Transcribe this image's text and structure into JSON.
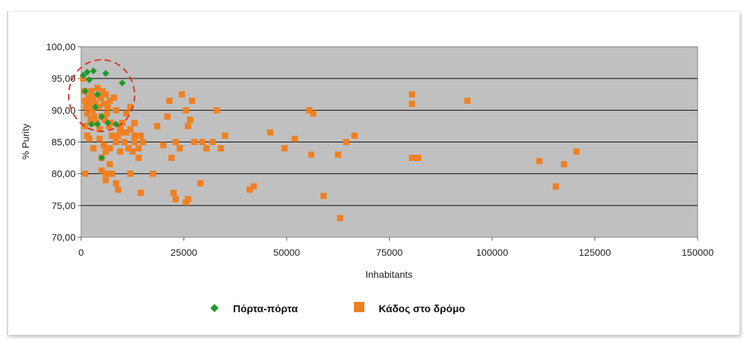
{
  "chart_data": {
    "type": "scatter",
    "xlabel": "Inhabitants",
    "ylabel": "% Purity",
    "xlim": [
      0,
      150000
    ],
    "ylim": [
      70,
      100
    ],
    "x_ticks": [
      0,
      25000,
      50000,
      75000,
      100000,
      125000,
      150000
    ],
    "x_tick_labels": [
      "0",
      "25000",
      "50000",
      "75000",
      "100000",
      "125000",
      "150000"
    ],
    "y_ticks": [
      70,
      75,
      80,
      85,
      90,
      95,
      100
    ],
    "y_tick_labels": [
      "70,00",
      "75,00",
      "80,00",
      "85,00",
      "90,00",
      "95,00",
      "100,00"
    ],
    "grid": "horizontal",
    "legend_position": "bottom",
    "annotation": {
      "type": "dashed-circle",
      "center": [
        5500,
        92
      ],
      "color": "#e03020"
    },
    "series": [
      {
        "name": "Πόρτα-πόρτα",
        "marker": "diamond",
        "color": "#1e9a2e",
        "points": [
          [
            500,
            95.5
          ],
          [
            1500,
            96
          ],
          [
            3000,
            96.2
          ],
          [
            6000,
            95.8
          ],
          [
            10000,
            94.3
          ],
          [
            2000,
            94.8
          ],
          [
            4000,
            92.5
          ],
          [
            3500,
            90.5
          ],
          [
            5000,
            89
          ],
          [
            2500,
            87.8
          ],
          [
            4000,
            87.8
          ],
          [
            6500,
            88
          ],
          [
            8500,
            87.8
          ],
          [
            1000,
            93
          ],
          [
            5000,
            82.5
          ]
        ]
      },
      {
        "name": "Κάδος στο δρόμο",
        "marker": "square",
        "color": "#f08020",
        "points": [
          [
            500,
            95
          ],
          [
            800,
            93
          ],
          [
            1000,
            91.5
          ],
          [
            1200,
            90.5
          ],
          [
            1500,
            89.5
          ],
          [
            1800,
            92
          ],
          [
            2000,
            91
          ],
          [
            2300,
            88.5
          ],
          [
            2500,
            93
          ],
          [
            2800,
            90
          ],
          [
            3000,
            92
          ],
          [
            3200,
            89
          ],
          [
            3500,
            91
          ],
          [
            3800,
            88
          ],
          [
            4000,
            93.5
          ],
          [
            4300,
            90.5
          ],
          [
            4500,
            87
          ],
          [
            4800,
            92
          ],
          [
            5000,
            89
          ],
          [
            5200,
            93
          ],
          [
            5500,
            91
          ],
          [
            5800,
            88.5
          ],
          [
            6000,
            92.5
          ],
          [
            6300,
            89.5
          ],
          [
            6500,
            90.5
          ],
          [
            6800,
            87.5
          ],
          [
            7000,
            91.5
          ],
          [
            7300,
            88
          ],
          [
            8000,
            92
          ],
          [
            8500,
            90
          ],
          [
            9000,
            86
          ],
          [
            9500,
            87
          ],
          [
            10000,
            88
          ],
          [
            11000,
            89.5
          ],
          [
            12000,
            90.5
          ],
          [
            13000,
            86
          ],
          [
            1000,
            87.5
          ],
          [
            1500,
            86
          ],
          [
            2000,
            85.5
          ],
          [
            3000,
            84
          ],
          [
            4500,
            85.5
          ],
          [
            5500,
            84.5
          ],
          [
            6000,
            83.5
          ],
          [
            7000,
            84
          ],
          [
            7500,
            86
          ],
          [
            8500,
            85
          ],
          [
            9500,
            83.5
          ],
          [
            10500,
            85
          ],
          [
            11500,
            84
          ],
          [
            12500,
            83.5
          ],
          [
            13000,
            85
          ],
          [
            14000,
            84
          ],
          [
            14500,
            86
          ],
          [
            15000,
            85
          ],
          [
            12000,
            87
          ],
          [
            13000,
            88
          ],
          [
            11000,
            86.5
          ],
          [
            10000,
            86.5
          ],
          [
            1000,
            80
          ],
          [
            5000,
            80.5
          ],
          [
            6000,
            80
          ],
          [
            7000,
            81.5
          ],
          [
            7500,
            80
          ],
          [
            6000,
            79
          ],
          [
            8500,
            78.5
          ],
          [
            9000,
            77.5
          ],
          [
            12000,
            80
          ],
          [
            14500,
            77
          ],
          [
            17500,
            80
          ],
          [
            5000,
            82.5
          ],
          [
            14000,
            82.5
          ],
          [
            18500,
            87.5
          ],
          [
            20000,
            84.5
          ],
          [
            21500,
            91.5
          ],
          [
            21000,
            89
          ],
          [
            22000,
            82.5
          ],
          [
            23000,
            85
          ],
          [
            24000,
            84
          ],
          [
            24500,
            92.5
          ],
          [
            25500,
            90
          ],
          [
            26000,
            87.5
          ],
          [
            26500,
            88.5
          ],
          [
            27000,
            91.5
          ],
          [
            27500,
            85
          ],
          [
            22500,
            77
          ],
          [
            23000,
            76
          ],
          [
            25500,
            75.5
          ],
          [
            26000,
            76
          ],
          [
            29000,
            78.5
          ],
          [
            29500,
            85
          ],
          [
            30500,
            84
          ],
          [
            32000,
            85
          ],
          [
            33000,
            90
          ],
          [
            34000,
            84
          ],
          [
            35000,
            86
          ],
          [
            41000,
            77.5
          ],
          [
            42000,
            78
          ],
          [
            46000,
            86.5
          ],
          [
            49500,
            84
          ],
          [
            52000,
            85.5
          ],
          [
            55500,
            90
          ],
          [
            56000,
            83
          ],
          [
            56500,
            89.5
          ],
          [
            59000,
            76.5
          ],
          [
            62500,
            83
          ],
          [
            63000,
            73
          ],
          [
            64500,
            85
          ],
          [
            66500,
            86
          ],
          [
            80500,
            92.5
          ],
          [
            80500,
            91
          ],
          [
            80500,
            82.5
          ],
          [
            82000,
            82.5
          ],
          [
            94000,
            91.5
          ],
          [
            111500,
            82
          ],
          [
            115500,
            78
          ],
          [
            117500,
            81.5
          ],
          [
            120500,
            83.5
          ]
        ]
      }
    ]
  }
}
